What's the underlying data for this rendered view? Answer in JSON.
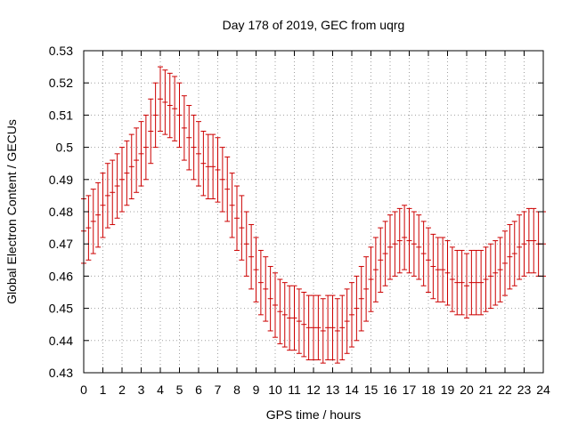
{
  "chart_data": {
    "type": "scatter",
    "title": "Day 178 of 2019, GEC from uqrg",
    "xlabel": "GPS time / hours",
    "ylabel": "Global Electron Content / GECUs",
    "xlim": [
      0,
      24
    ],
    "ylim": [
      0.43,
      0.53
    ],
    "xticks": [
      "0",
      "1",
      "2",
      "3",
      "4",
      "5",
      "6",
      "7",
      "8",
      "9",
      "10",
      "11",
      "12",
      "13",
      "14",
      "15",
      "16",
      "17",
      "18",
      "19",
      "20",
      "21",
      "22",
      "23",
      "24"
    ],
    "yticks": [
      "0.43",
      "0.44",
      "0.45",
      "0.46",
      "0.47",
      "0.48",
      "0.49",
      "0.5",
      "0.51",
      "0.52",
      "0.53"
    ],
    "grid": true,
    "series": [
      {
        "name": "GEC",
        "color": "#cc0000",
        "error": 0.01,
        "x": [
          0,
          0.25,
          0.5,
          0.75,
          1,
          1.25,
          1.5,
          1.75,
          2,
          2.25,
          2.5,
          2.75,
          3,
          3.25,
          3.5,
          3.75,
          4,
          4.25,
          4.5,
          4.75,
          5,
          5.25,
          5.5,
          5.75,
          6,
          6.25,
          6.5,
          6.75,
          7,
          7.25,
          7.5,
          7.75,
          8,
          8.25,
          8.5,
          8.75,
          9,
          9.25,
          9.5,
          9.75,
          10,
          10.25,
          10.5,
          10.75,
          11,
          11.25,
          11.5,
          11.75,
          12,
          12.25,
          12.5,
          12.75,
          13,
          13.25,
          13.5,
          13.75,
          14,
          14.25,
          14.5,
          14.75,
          15,
          15.25,
          15.5,
          15.75,
          16,
          16.25,
          16.5,
          16.75,
          17,
          17.25,
          17.5,
          17.75,
          18,
          18.25,
          18.5,
          18.75,
          19,
          19.25,
          19.5,
          19.75,
          20,
          20.25,
          20.5,
          20.75,
          21,
          21.25,
          21.5,
          21.75,
          22,
          22.25,
          22.5,
          22.75,
          23,
          23.25,
          23.5,
          23.75,
          24
        ],
        "values": [
          0.474,
          0.475,
          0.477,
          0.479,
          0.482,
          0.485,
          0.486,
          0.488,
          0.49,
          0.492,
          0.494,
          0.496,
          0.498,
          0.5,
          0.505,
          0.51,
          0.515,
          0.514,
          0.513,
          0.512,
          0.51,
          0.506,
          0.503,
          0.5,
          0.498,
          0.495,
          0.494,
          0.494,
          0.493,
          0.49,
          0.487,
          0.482,
          0.478,
          0.475,
          0.47,
          0.466,
          0.462,
          0.458,
          0.456,
          0.453,
          0.451,
          0.449,
          0.448,
          0.447,
          0.447,
          0.446,
          0.445,
          0.444,
          0.444,
          0.444,
          0.443,
          0.444,
          0.444,
          0.443,
          0.444,
          0.446,
          0.448,
          0.45,
          0.453,
          0.456,
          0.459,
          0.462,
          0.465,
          0.467,
          0.469,
          0.47,
          0.471,
          0.472,
          0.471,
          0.47,
          0.469,
          0.467,
          0.465,
          0.463,
          0.462,
          0.462,
          0.461,
          0.459,
          0.458,
          0.458,
          0.457,
          0.458,
          0.458,
          0.458,
          0.459,
          0.46,
          0.461,
          0.462,
          0.464,
          0.466,
          0.467,
          0.469,
          0.47,
          0.471,
          0.471,
          0.47,
          0.47
        ]
      }
    ]
  }
}
